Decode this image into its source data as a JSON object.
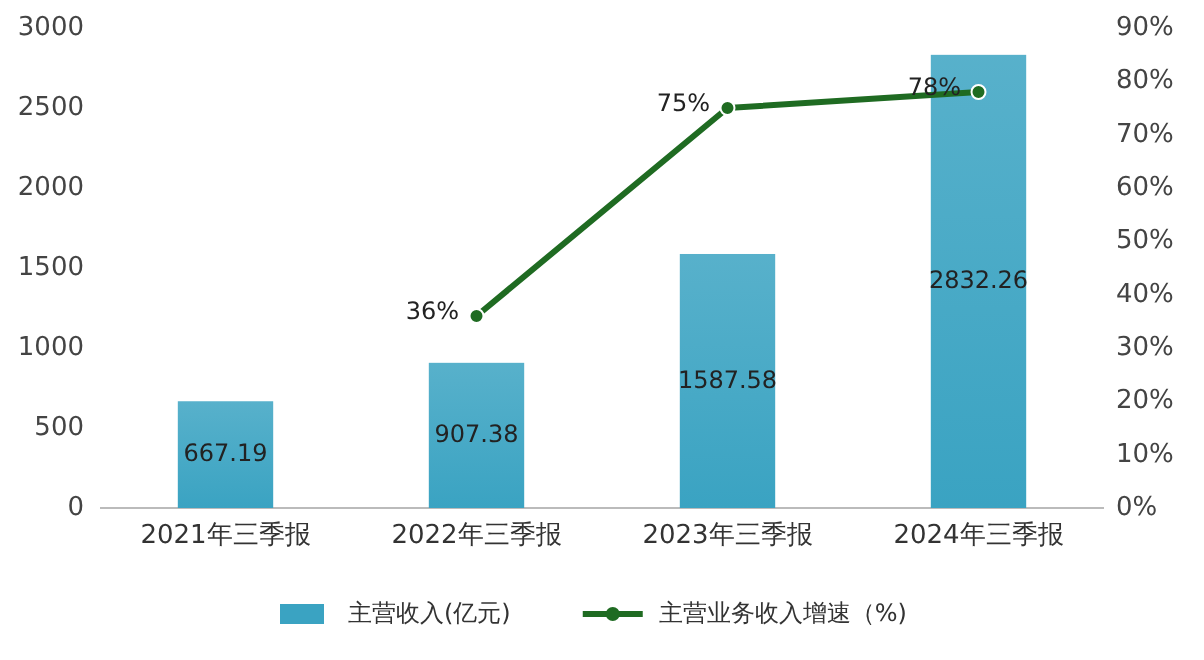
{
  "chart_data": {
    "type": "bar",
    "categories": [
      "2021年三季报",
      "2022年三季报",
      "2023年三季报",
      "2024年三季报"
    ],
    "series": [
      {
        "name": "主营收入(亿元)",
        "color": "#3aa3c2",
        "values": [
          667.19,
          907.38,
          1587.58,
          2832.26
        ],
        "value_labels": [
          "667.19",
          "907.38",
          "1587.58",
          "2832.26"
        ]
      },
      {
        "name": "主营业务收入增速（%)",
        "type": "line",
        "axis": "y2",
        "color": "#1f6b22",
        "values": [
          null,
          36,
          75,
          78
        ],
        "value_labels": [
          null,
          "36%",
          "75%",
          "78%"
        ]
      }
    ],
    "ylim": [
      0,
      3000
    ],
    "yticks": [
      0,
      500,
      1000,
      1500,
      2000,
      2500,
      3000
    ],
    "y2lim": [
      0,
      90
    ],
    "y2ticks": [
      {
        "value": 0,
        "label": "0%"
      },
      {
        "value": 10,
        "label": "10%"
      },
      {
        "value": 20,
        "label": "20%"
      },
      {
        "value": 30,
        "label": "30%"
      },
      {
        "value": 40,
        "label": "40%"
      },
      {
        "value": 50,
        "label": "50%"
      },
      {
        "value": 60,
        "label": "60%"
      },
      {
        "value": 70,
        "label": "70%"
      },
      {
        "value": 80,
        "label": "80%"
      },
      {
        "value": 90,
        "label": "90%"
      }
    ],
    "marker": "circle",
    "line_style": "solid",
    "legend": "bottom"
  }
}
